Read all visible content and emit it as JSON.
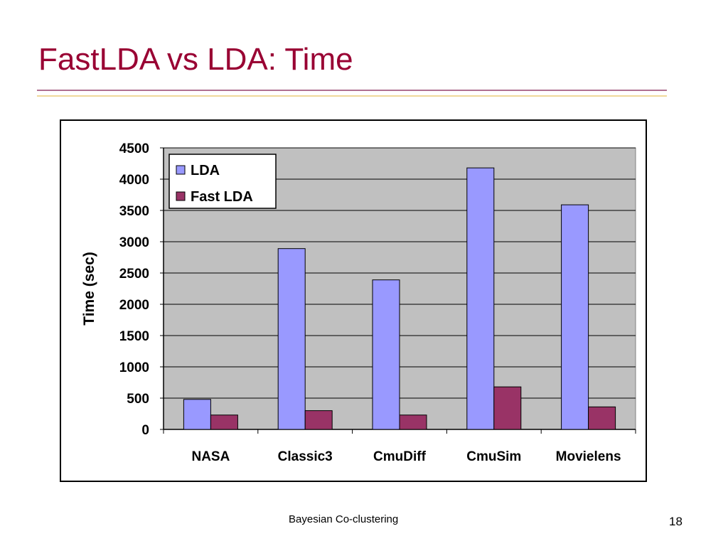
{
  "slide": {
    "title": "FastLDA vs LDA: Time",
    "footer": "Bayesian Co-clustering",
    "page_number": "18"
  },
  "colors": {
    "title": "#990033",
    "plot_background": "#c0c0c0",
    "lda": "#9999ff",
    "fast_lda": "#993366"
  },
  "chart_data": {
    "type": "bar",
    "title": "",
    "xlabel": "",
    "ylabel": "Time (sec)",
    "categories": [
      "NASA",
      "Classic3",
      "CmuDiff",
      "CmuSim",
      "Movielens"
    ],
    "series": [
      {
        "name": "LDA",
        "values": [
          480,
          2890,
          2390,
          4180,
          3590
        ]
      },
      {
        "name": "Fast LDA",
        "values": [
          230,
          300,
          230,
          680,
          360
        ]
      }
    ],
    "ylim": [
      0,
      4500
    ],
    "yticks": [
      0,
      500,
      1000,
      1500,
      2000,
      2500,
      3000,
      3500,
      4000,
      4500
    ],
    "grid": true,
    "legend": "top-left"
  }
}
